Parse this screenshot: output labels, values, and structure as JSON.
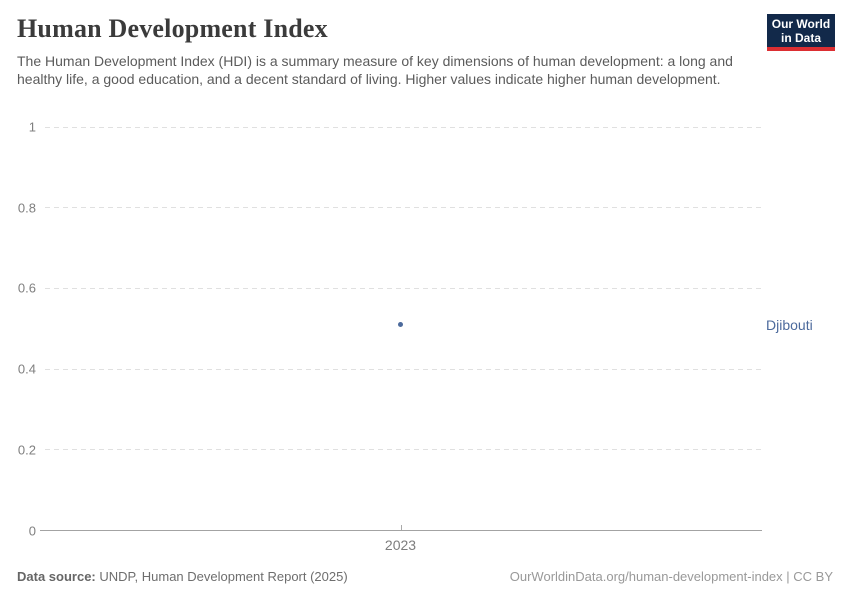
{
  "header": {
    "title": "Human Development Index",
    "subtitle": "The Human Development Index (HDI) is a summary measure of key dimensions of human development: a long and healthy life, a good education, and a decent standard of living. Higher values indicate higher human development.",
    "logo": {
      "line1": "Our World",
      "line2": "in Data",
      "bg_color": "#12294a",
      "accent_color": "#dc2e32"
    }
  },
  "chart_data": {
    "type": "scatter",
    "title": "Human Development Index",
    "x": [
      2023
    ],
    "series": [
      {
        "name": "Djibouti",
        "values": [
          0.51
        ],
        "color": "#4c6a9c"
      }
    ],
    "ylim": [
      0,
      1
    ],
    "yticks": [
      0,
      0.2,
      0.4,
      0.6,
      0.8,
      1
    ],
    "xticks": [
      "2023"
    ],
    "grid": "horizontal-dashed",
    "legend_position": "right-entity-label",
    "entity_labels": [
      {
        "name": "Djibouti",
        "value": 0.51,
        "color": "#4c6a9c"
      }
    ]
  },
  "footer": {
    "source_prefix": "Data source:",
    "source_text": " UNDP, Human Development Report (2025)",
    "credit": "OurWorldinData.org/human-development-index | CC BY"
  }
}
